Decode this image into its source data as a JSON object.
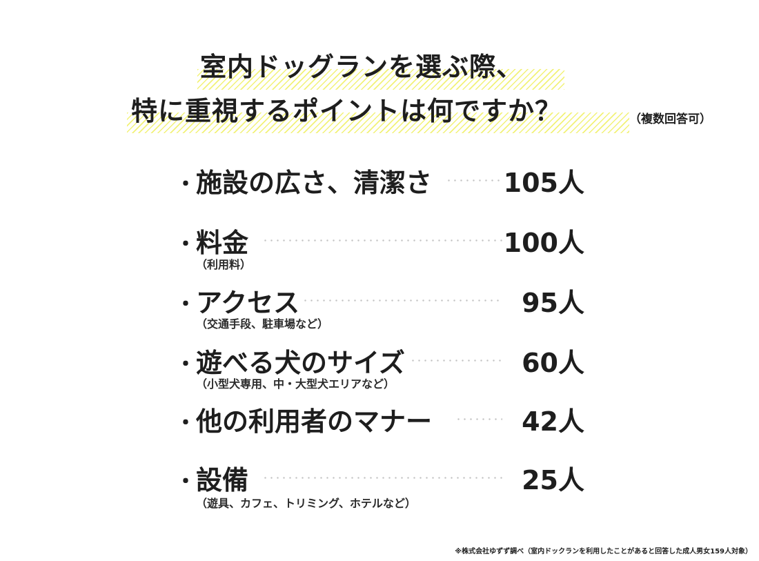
{
  "chart_data": {
    "type": "table",
    "title": [
      "室内ドッグランを選ぶ際、",
      "特に重視するポイントは何ですか？"
    ],
    "subtitle": "（複数回答可）",
    "categories": [
      "施設の広さ、清潔さ",
      "料金",
      "アクセス",
      "遊べる犬のサイズ",
      "他の利用者のマナー",
      "設備"
    ],
    "sub_labels": [
      "",
      "（利用料）",
      "（交通手段、駐車場など）",
      "（小型犬専用、中・大型犬エリアなど）",
      "",
      "（遊具、カフェ、トリミング、ホテルなど）"
    ],
    "values": [
      105,
      100,
      95,
      60,
      42,
      25
    ],
    "value_labels": [
      "105人",
      "100人",
      "95人",
      "60人",
      "42人",
      "25人"
    ],
    "unit": "人",
    "bullet": "・",
    "source": "※株式会社ゆずず調べ（室内ドックランを利用したことがあると回答した成人男女159人対象）",
    "colors": {
      "highlight": "#f2f277",
      "text": "#1e1e1e",
      "dots": "#c4c4c4"
    }
  }
}
